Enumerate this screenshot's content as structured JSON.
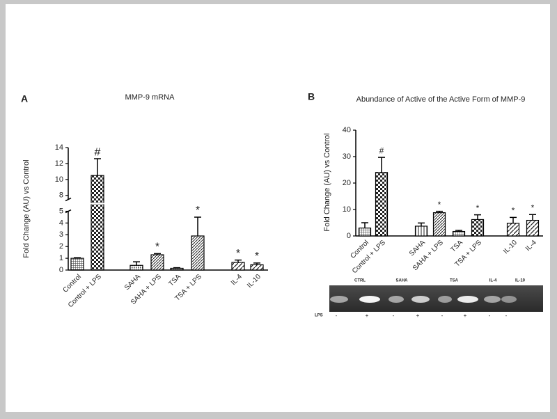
{
  "chart_data": [
    {
      "type": "bar",
      "panel": "A",
      "title": "MMP-9 mRNA",
      "y_label": "Fold Change (AU) vs  Control",
      "categories": [
        "Control",
        "Control + LPS",
        "SAHA",
        "SAHA + LPS",
        "TSA",
        "TSA + LPS",
        "IL-4",
        "IL-10"
      ],
      "values": [
        1,
        10.5,
        0.4,
        1.3,
        0.15,
        2.9,
        0.65,
        0.45
      ],
      "errors": [
        0.05,
        2.1,
        0.3,
        0.1,
        0.05,
        1.6,
        0.2,
        0.15
      ],
      "annotations": [
        null,
        "#",
        null,
        "*",
        null,
        "*",
        "*",
        "*"
      ],
      "ylim": [
        0,
        14
      ],
      "yticks": [
        0,
        1,
        2,
        3,
        4,
        5,
        8,
        10,
        12,
        14
      ],
      "y_break": [
        5,
        7.5
      ]
    },
    {
      "type": "bar",
      "panel": "B",
      "title": "Abundance of Active of the Active Form of MMP-9",
      "y_label": "Fold Change (AU) vs Control",
      "categories": [
        "Control",
        "Control + LPS",
        "SAHA",
        "SAHA + LPS",
        "TSA",
        "TSA + LPS",
        "IL-10",
        "IL-4"
      ],
      "values": [
        3,
        24,
        3.7,
        8.8,
        1.7,
        6.2,
        4.8,
        5.9
      ],
      "errors": [
        2,
        5.7,
        1.2,
        0.5,
        0.4,
        1.8,
        2.2,
        2.2
      ],
      "annotations": [
        null,
        "#",
        null,
        "*",
        null,
        "*",
        "*",
        "*"
      ],
      "ylim": [
        0,
        40
      ],
      "yticks": [
        0,
        10,
        20,
        30,
        40
      ]
    }
  ],
  "gel": {
    "lanes": [
      "CTRL",
      "SAHA",
      "TSA",
      "IL-4",
      "IL-10"
    ],
    "lps_label": "LPS",
    "lps": [
      "-",
      "+",
      "-",
      "+",
      "-",
      "+",
      "-",
      "-"
    ]
  }
}
